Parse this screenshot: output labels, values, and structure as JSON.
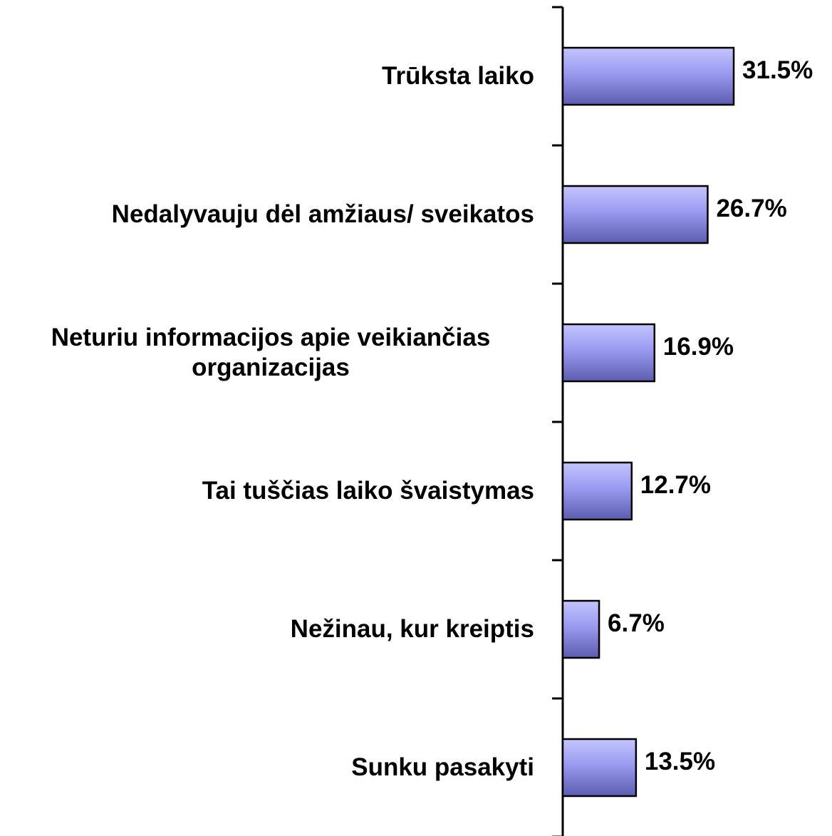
{
  "chart_data": {
    "type": "barh",
    "categories": [
      "Trūksta laiko",
      "Nedalyvauju dėl amžiaus/ sveikatos",
      "Neturiu informacijos apie veikiančias organizacijas",
      "Tai tuščias laiko švaistymas",
      "Nežinau, kur kreiptis",
      "Sunku pasakyti"
    ],
    "values": [
      31.5,
      26.7,
      16.9,
      12.7,
      6.7,
      13.5
    ],
    "value_labels": [
      "31.5%",
      "26.7%",
      "16.9%",
      "12.7%",
      "6.7%",
      "13.5%"
    ],
    "color": "#9a9af0"
  }
}
